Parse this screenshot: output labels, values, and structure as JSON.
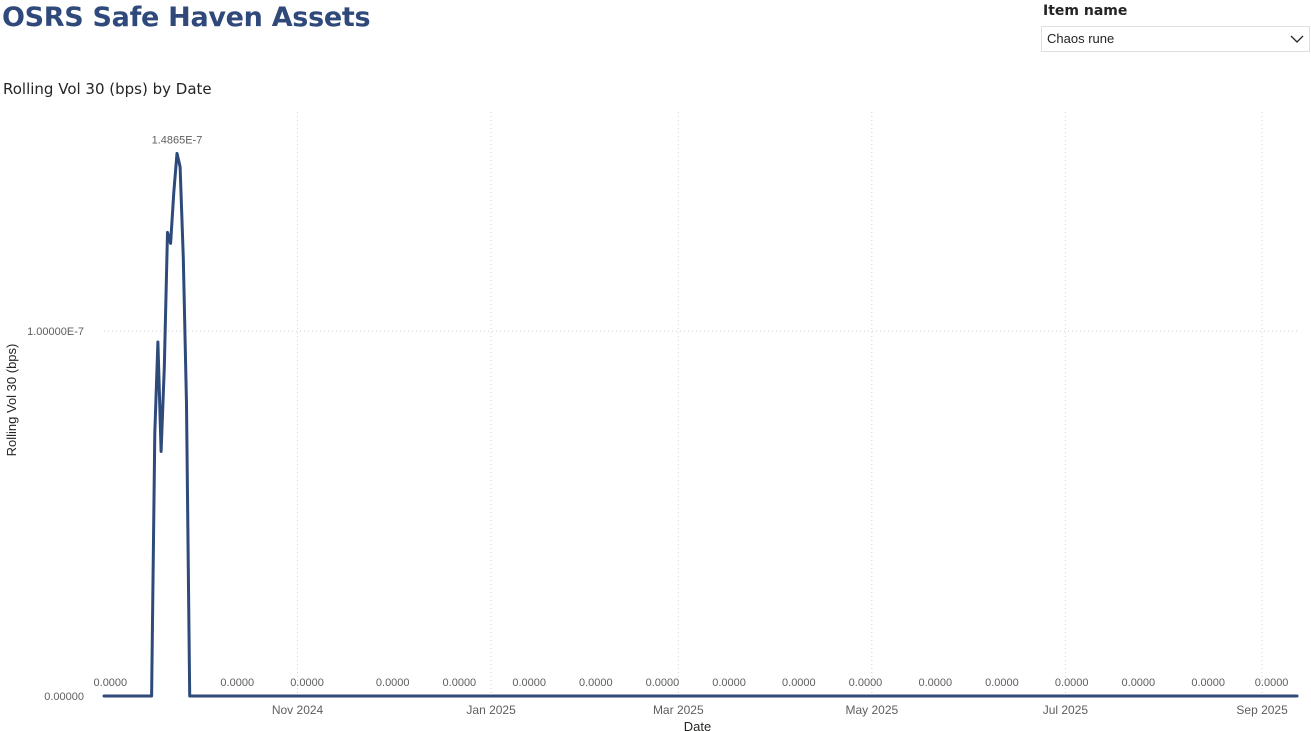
{
  "page": {
    "title": "OSRS Safe Haven Assets"
  },
  "slicer": {
    "label": "Item name",
    "selected": "Chaos rune"
  },
  "colors": {
    "title": "#2f4a7a",
    "series": "#2e4a7a",
    "grid": "#d0d0d0",
    "text": "#605e5c"
  },
  "chart_data": {
    "type": "line",
    "title": "Rolling Vol 30 (bps) by Date",
    "xlabel": "Date",
    "ylabel": "Rolling Vol 30 (bps)",
    "xlim": [
      "2024-09-01",
      "2025-09-12"
    ],
    "ylim": [
      0,
      1.6e-07
    ],
    "x_ticks": [
      {
        "date": "2024-11-01",
        "label": "Nov 2024"
      },
      {
        "date": "2025-01-01",
        "label": "Jan 2025"
      },
      {
        "date": "2025-03-01",
        "label": "Mar 2025"
      },
      {
        "date": "2025-05-01",
        "label": "May 2025"
      },
      {
        "date": "2025-07-01",
        "label": "Jul 2025"
      },
      {
        "date": "2025-09-01",
        "label": "Sep 2025"
      }
    ],
    "y_ticks": [
      {
        "value": 0,
        "label": "0.00000"
      },
      {
        "value": 1e-07,
        "label": "1.00000E-7"
      }
    ],
    "grid": true,
    "series": [
      {
        "points": [
          [
            "2024-09-01",
            0
          ],
          [
            "2024-09-16",
            0
          ],
          [
            "2024-09-17",
            7.2e-08
          ],
          [
            "2024-09-18",
            9.7e-08
          ],
          [
            "2024-09-19",
            6.7e-08
          ],
          [
            "2024-09-20",
            9e-08
          ],
          [
            "2024-09-21",
            1.27e-07
          ],
          [
            "2024-09-22",
            1.24e-07
          ],
          [
            "2024-09-23",
            1.38e-07
          ],
          [
            "2024-09-24",
            1.4865e-07
          ],
          [
            "2024-09-25",
            1.45e-07
          ],
          [
            "2024-09-26",
            1.2e-07
          ],
          [
            "2024-09-27",
            8e-08
          ],
          [
            "2024-09-28",
            0
          ],
          [
            "2025-09-12",
            0
          ]
        ]
      }
    ],
    "data_labels": [
      {
        "date": "2024-09-24",
        "value": 1.4865e-07,
        "text": "1.4865E-7"
      },
      {
        "date": "2024-09-03",
        "value": 0,
        "text": "0.0000"
      },
      {
        "date": "2024-10-13",
        "value": 0,
        "text": "0.0000"
      },
      {
        "date": "2024-11-04",
        "value": 0,
        "text": "0.0000"
      },
      {
        "date": "2024-12-01",
        "value": 0,
        "text": "0.0000"
      },
      {
        "date": "2024-12-22",
        "value": 0,
        "text": "0.0000"
      },
      {
        "date": "2025-01-13",
        "value": 0,
        "text": "0.0000"
      },
      {
        "date": "2025-02-03",
        "value": 0,
        "text": "0.0000"
      },
      {
        "date": "2025-02-24",
        "value": 0,
        "text": "0.0000"
      },
      {
        "date": "2025-03-17",
        "value": 0,
        "text": "0.0000"
      },
      {
        "date": "2025-04-08",
        "value": 0,
        "text": "0.0000"
      },
      {
        "date": "2025-04-29",
        "value": 0,
        "text": "0.0000"
      },
      {
        "date": "2025-05-21",
        "value": 0,
        "text": "0.0000"
      },
      {
        "date": "2025-06-11",
        "value": 0,
        "text": "0.0000"
      },
      {
        "date": "2025-07-03",
        "value": 0,
        "text": "0.0000"
      },
      {
        "date": "2025-07-24",
        "value": 0,
        "text": "0.0000"
      },
      {
        "date": "2025-08-15",
        "value": 0,
        "text": "0.0000"
      },
      {
        "date": "2025-09-04",
        "value": 0,
        "text": "0.0000"
      }
    ]
  }
}
